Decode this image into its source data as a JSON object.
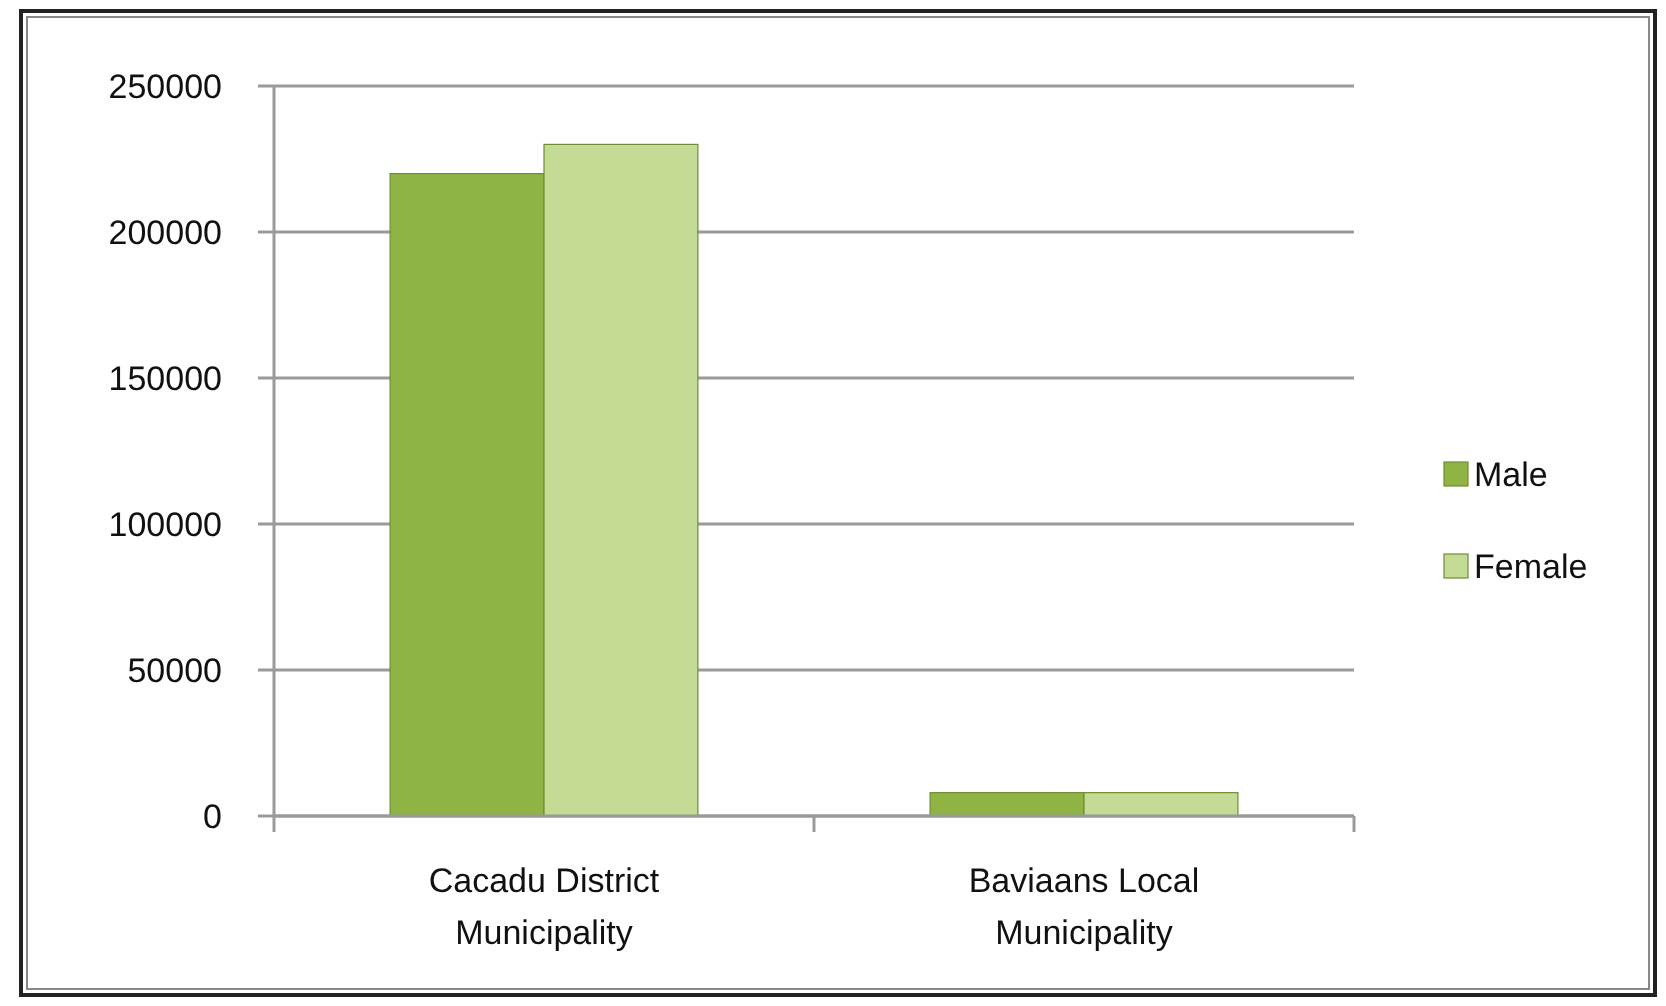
{
  "chart_data": {
    "type": "bar",
    "categories": [
      "Cacadu District Municipality",
      "Baviaans Local Municipality"
    ],
    "series": [
      {
        "name": "Male",
        "color": "#8fb443",
        "values": [
          220000,
          8000
        ]
      },
      {
        "name": "Female",
        "color": "#c4db96",
        "values": [
          230000,
          8000
        ]
      }
    ],
    "ylim": [
      0,
      250000
    ],
    "yticks": [
      0,
      50000,
      100000,
      150000,
      200000,
      250000
    ],
    "grid": "y",
    "legend": "right"
  }
}
